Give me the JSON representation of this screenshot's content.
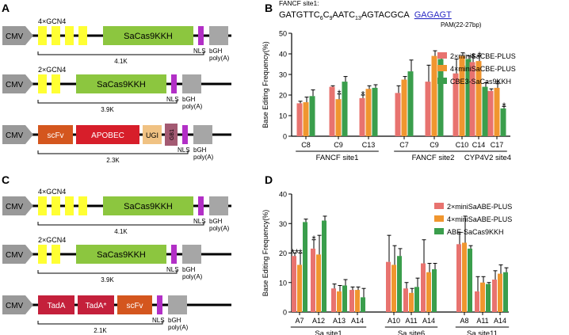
{
  "panels": {
    "A": {
      "label": "A",
      "constructs": [
        {
          "promoter": "CMV",
          "gcn4_label": "4×GCN4",
          "gcn4_count": 4,
          "blocks": [
            {
              "text": "SaCas9KKH"
            }
          ],
          "nls": "NLS",
          "polyA": [
            "bGH",
            "poly(A)"
          ],
          "size": "4.1K"
        },
        {
          "promoter": "CMV",
          "gcn4_label": "2×GCN4",
          "gcn4_count": 2,
          "blocks": [
            {
              "text": "SaCas9KKH"
            }
          ],
          "nls": "NLS",
          "polyA": [
            "bGH",
            "poly(A)"
          ],
          "size": "3.9K"
        },
        {
          "promoter": "CMV",
          "blocks": [
            {
              "text": "scFv"
            },
            {
              "text": "APOBEC"
            },
            {
              "text": "UGI"
            },
            {
              "text": "GB1"
            }
          ],
          "nls": "NLS",
          "polyA": [
            "bGH",
            "poly(A)"
          ],
          "size": "2.3K"
        }
      ]
    },
    "C": {
      "label": "C",
      "constructs": [
        {
          "promoter": "CMV",
          "gcn4_label": "4×GCN4",
          "gcn4_count": 4,
          "blocks": [
            {
              "text": "SaCas9KKH"
            }
          ],
          "nls": "NLS",
          "polyA": [
            "bGH",
            "poly(A)"
          ],
          "size": "4.1K"
        },
        {
          "promoter": "CMV",
          "gcn4_label": "2×GCN4",
          "gcn4_count": 2,
          "blocks": [
            {
              "text": "SaCas9KKH"
            }
          ],
          "nls": "NLS",
          "polyA": [
            "bGH",
            "poly(A)"
          ],
          "size": "3.9K"
        },
        {
          "promoter": "CMV",
          "blocks": [
            {
              "text": "TadA"
            },
            {
              "text": "TadA*"
            },
            {
              "text": "scFv"
            }
          ],
          "nls": "NLS",
          "polyA": [
            "bGH",
            "poly(A)"
          ],
          "size": "2.1K"
        }
      ]
    },
    "B": {
      "label": "B",
      "site_title": "FANCF site1:",
      "sequence": {
        "main": "GATGTTC",
        "sub1": "6",
        "c2": "C",
        "sub2": "9",
        "mid": "AATC",
        "sub3": "13",
        "tail": "AGTACGCA",
        "pam": "GAGAGT"
      },
      "pam_note": "PAM(22-27bp)"
    },
    "D": {
      "label": "D"
    }
  },
  "chart_data": [
    {
      "type": "bar",
      "panel": "B",
      "ylabel": "Base Editing Frequency(%)",
      "ylim": [
        0,
        50
      ],
      "yticks": [
        0,
        10,
        20,
        30,
        40,
        50
      ],
      "categories": [
        "C8",
        "C9",
        "C13",
        "C7",
        "C9",
        "C10",
        "C14",
        "C17"
      ],
      "groups": [
        {
          "label": "FANCF site1",
          "span": [
            0,
            2
          ]
        },
        {
          "label": "FANCF site2",
          "span": [
            3,
            5
          ]
        },
        {
          "label": "CYP4V2 site4",
          "span": [
            6,
            7
          ]
        }
      ],
      "series": [
        {
          "name": "2×miniSaCBE-PLUS",
          "color": "#e8736f",
          "values": [
            16,
            24,
            18.5,
            21,
            26.5,
            30.5,
            36,
            22
          ],
          "errors": [
            1.0,
            0.5,
            1.5,
            3.5,
            8.0,
            7.0,
            2.5,
            1.0
          ]
        },
        {
          "name": "4×miniSaCBE-PLUS",
          "color": "#f0962f",
          "values": [
            16.5,
            18,
            23,
            27.5,
            39,
            39,
            36.5,
            23.5
          ],
          "errors": [
            2.5,
            2.5,
            1.5,
            1.5,
            2.5,
            1.5,
            2.5,
            2.0
          ]
        },
        {
          "name": "CBE3-SaCas9KKH",
          "color": "#3a9e4c",
          "values": [
            19.5,
            26.5,
            23.5,
            31.5,
            37.5,
            37.5,
            24,
            13.5
          ],
          "errors": [
            3.0,
            2.5,
            1.5,
            5.5,
            1.5,
            1.5,
            2.0,
            1.0
          ]
        }
      ],
      "annotations": [
        {
          "text": "*",
          "category": 1,
          "series": 1
        },
        {
          "text": "*",
          "category": 2,
          "series": 0
        },
        {
          "text": "*",
          "category": 6,
          "series": 0
        },
        {
          "text": "*",
          "category": 6,
          "series": 1
        },
        {
          "text": "*",
          "category": 7,
          "series": 1
        },
        {
          "text": "*",
          "category": 7,
          "series": 2
        }
      ]
    },
    {
      "type": "bar",
      "panel": "D",
      "ylabel": "Base Editing Frequency(%)",
      "ylim": [
        0,
        40
      ],
      "yticks": [
        0,
        10,
        20,
        30,
        40
      ],
      "categories": [
        "A7",
        "A12",
        "A13",
        "A14",
        "A10",
        "A11",
        "A14",
        "A8",
        "A11",
        "A14"
      ],
      "groups": [
        {
          "label": "Sa site1",
          "span": [
            0,
            3
          ]
        },
        {
          "label": "Sa site6",
          "span": [
            4,
            6
          ]
        },
        {
          "label": "Sa site11",
          "span": [
            7,
            9
          ]
        }
      ],
      "series": [
        {
          "name": "2×miniSaABE-PLUS",
          "color": "#e8736f",
          "values": [
            19,
            21.5,
            8,
            7.5,
            17,
            8,
            16.5,
            23,
            7,
            11
          ],
          "errors": [
            1.0,
            3.0,
            1.5,
            1.0,
            9.0,
            2.0,
            8.0,
            4.0,
            5.0,
            3.0
          ]
        },
        {
          "name": "4×miniSaABE-PLUS",
          "color": "#f0962f",
          "values": [
            16,
            19.5,
            7,
            7.5,
            16,
            6.5,
            13.5,
            23.5,
            10,
            13
          ],
          "errors": [
            4.0,
            6.5,
            2.0,
            1.0,
            6.5,
            1.5,
            3.0,
            9.0,
            2.0,
            3.0
          ]
        },
        {
          "name": "ABE-SaCas9KKH",
          "color": "#3a9e4c",
          "values": [
            30.5,
            31,
            9,
            5,
            19,
            8.5,
            14.5,
            21.5,
            9.5,
            13.5
          ],
          "errors": [
            1.0,
            1.5,
            2.0,
            3.0,
            2.5,
            3.0,
            2.0,
            1.0,
            0.5,
            1.5
          ]
        }
      ],
      "annotations": [
        {
          "text": "**",
          "category": 0,
          "series": 0
        },
        {
          "text": "*",
          "category": 0,
          "series": 1
        },
        {
          "text": "*",
          "category": 1,
          "series": 0
        }
      ]
    }
  ]
}
